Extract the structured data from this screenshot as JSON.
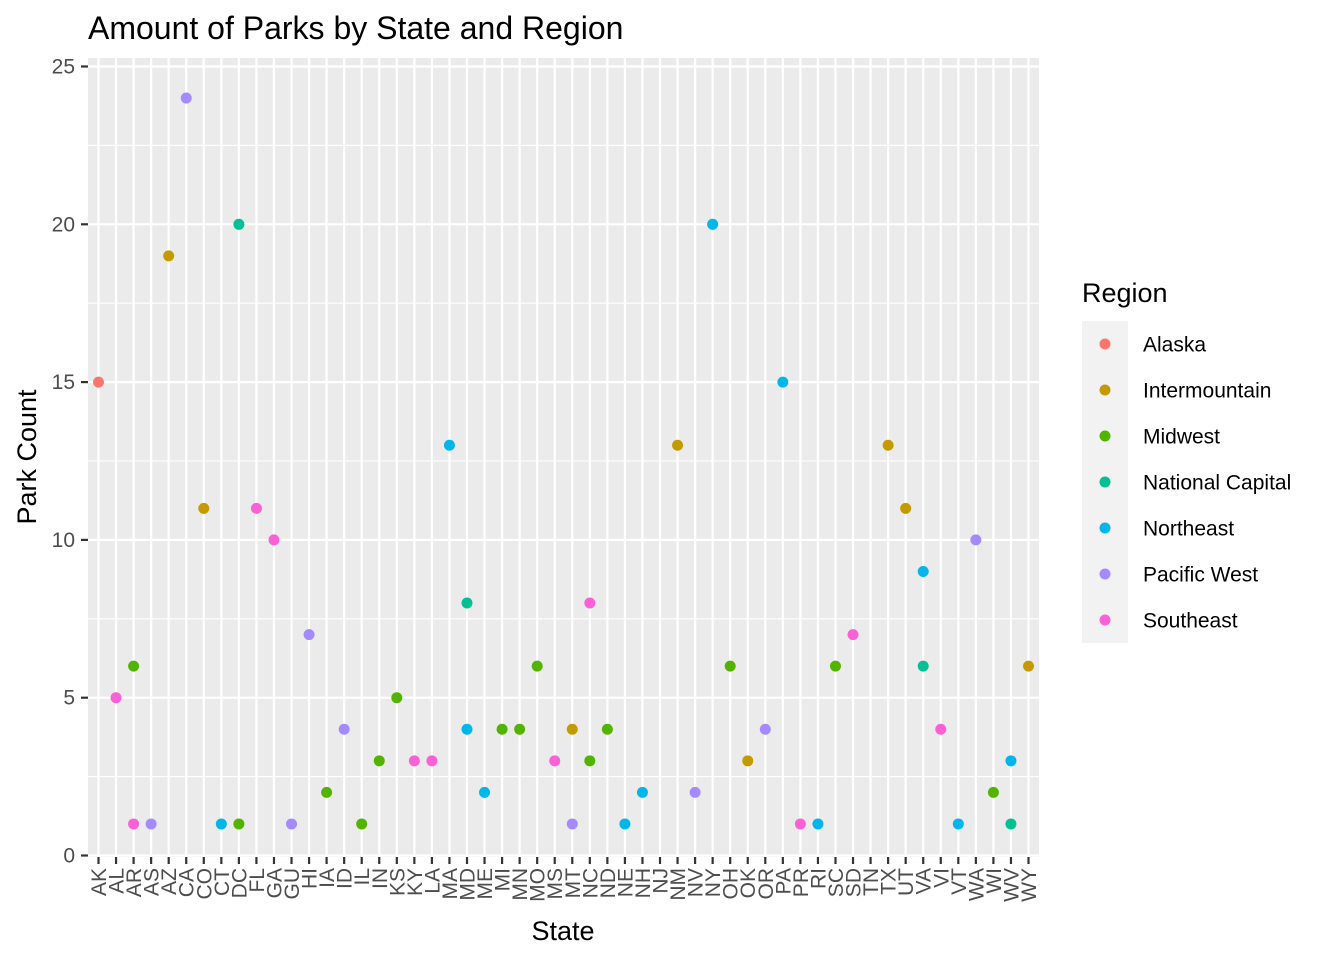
{
  "chart_data": {
    "type": "scatter",
    "title": "Amount of Parks by State and Region",
    "xlabel": "State",
    "ylabel": "Park Count",
    "ylim": [
      0,
      25
    ],
    "yticks": [
      0,
      5,
      10,
      15,
      20,
      25
    ],
    "grid": true,
    "legend_position": "right",
    "legend_title": "Region",
    "categories": [
      "AK",
      "AL",
      "AR",
      "AS",
      "AZ",
      "CA",
      "CO",
      "CT",
      "DC",
      "FL",
      "GA",
      "GU",
      "HI",
      "IA",
      "ID",
      "IL",
      "IN",
      "KS",
      "KY",
      "LA",
      "MA",
      "MD",
      "ME",
      "MI",
      "MN",
      "MO",
      "MS",
      "MT",
      "NC",
      "ND",
      "NE",
      "NH",
      "NJ",
      "NM",
      "NV",
      "NY",
      "OH",
      "OK",
      "OR",
      "PA",
      "PR",
      "RI",
      "SC",
      "SD",
      "TN",
      "TX",
      "UT",
      "VA",
      "VI",
      "VT",
      "WA",
      "WI",
      "WV",
      "WY"
    ],
    "series": [
      {
        "name": "Alaska",
        "color": "#F8766D",
        "points": [
          [
            "AK",
            15
          ]
        ]
      },
      {
        "name": "Intermountain",
        "color": "#C49A00",
        "points": [
          [
            "AZ",
            19
          ],
          [
            "CO",
            11
          ],
          [
            "MT",
            4
          ],
          [
            "NM",
            13
          ],
          [
            "OK",
            3
          ],
          [
            "TX",
            13
          ],
          [
            "UT",
            11
          ],
          [
            "WY",
            6
          ]
        ]
      },
      {
        "name": "Midwest",
        "color": "#53B400",
        "points": [
          [
            "AR",
            6
          ],
          [
            "DC",
            1
          ],
          [
            "IA",
            2
          ],
          [
            "IL",
            1
          ],
          [
            "IN",
            3
          ],
          [
            "KS",
            5
          ],
          [
            "MI",
            4
          ],
          [
            "MN",
            4
          ],
          [
            "MO",
            6
          ],
          [
            "NC",
            3
          ],
          [
            "ND",
            4
          ],
          [
            "OH",
            6
          ],
          [
            "SC",
            6
          ],
          [
            "WI",
            2
          ]
        ]
      },
      {
        "name": "National Capital",
        "color": "#00C094",
        "points": [
          [
            "DC",
            20
          ],
          [
            "MD",
            8
          ],
          [
            "VA",
            6
          ],
          [
            "WV",
            1
          ]
        ]
      },
      {
        "name": "Northeast",
        "color": "#00B6EB",
        "points": [
          [
            "CT",
            1
          ],
          [
            "MA",
            13
          ],
          [
            "MD",
            4
          ],
          [
            "ME",
            2
          ],
          [
            "NE",
            1
          ],
          [
            "NH",
            2
          ],
          [
            "NY",
            20
          ],
          [
            "PA",
            15
          ],
          [
            "RI",
            1
          ],
          [
            "VA",
            9
          ],
          [
            "VT",
            1
          ],
          [
            "WV",
            3
          ]
        ]
      },
      {
        "name": "Pacific West",
        "color": "#A58AFF",
        "points": [
          [
            "AS",
            1
          ],
          [
            "CA",
            24
          ],
          [
            "GU",
            1
          ],
          [
            "HI",
            7
          ],
          [
            "ID",
            4
          ],
          [
            "MT",
            1
          ],
          [
            "NV",
            2
          ],
          [
            "OR",
            4
          ],
          [
            "WA",
            10
          ]
        ]
      },
      {
        "name": "Southeast",
        "color": "#FB61D7",
        "points": [
          [
            "AL",
            5
          ],
          [
            "AR",
            1
          ],
          [
            "FL",
            11
          ],
          [
            "GA",
            10
          ],
          [
            "KY",
            3
          ],
          [
            "LA",
            3
          ],
          [
            "MS",
            3
          ],
          [
            "NC",
            8
          ],
          [
            "PR",
            1
          ],
          [
            "SD",
            7
          ],
          [
            "VI",
            4
          ]
        ]
      }
    ]
  }
}
